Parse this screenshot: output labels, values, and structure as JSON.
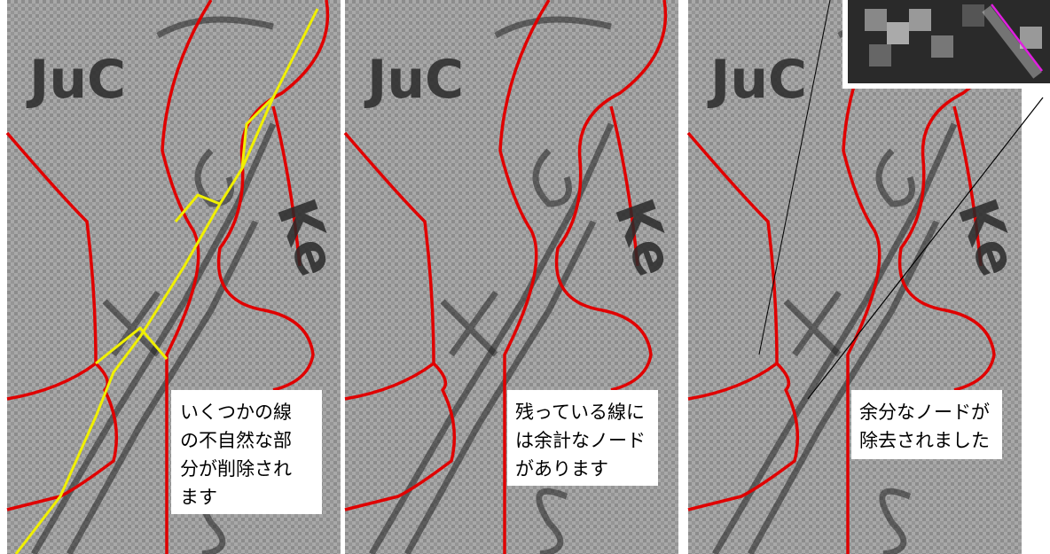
{
  "panels": [
    {
      "map_labels": [
        "JuC",
        "Ke"
      ],
      "caption": [
        "いくつかの線",
        "の不自然な部",
        "分が削除され",
        "ます"
      ]
    },
    {
      "map_labels": [
        "JuC",
        "Ke"
      ],
      "caption": [
        "残っている線に",
        "は余計なノード",
        "があります"
      ]
    },
    {
      "map_labels": [
        "JuC",
        "Ke"
      ],
      "caption": [
        "余分なノードが",
        "除去されました"
      ]
    }
  ]
}
